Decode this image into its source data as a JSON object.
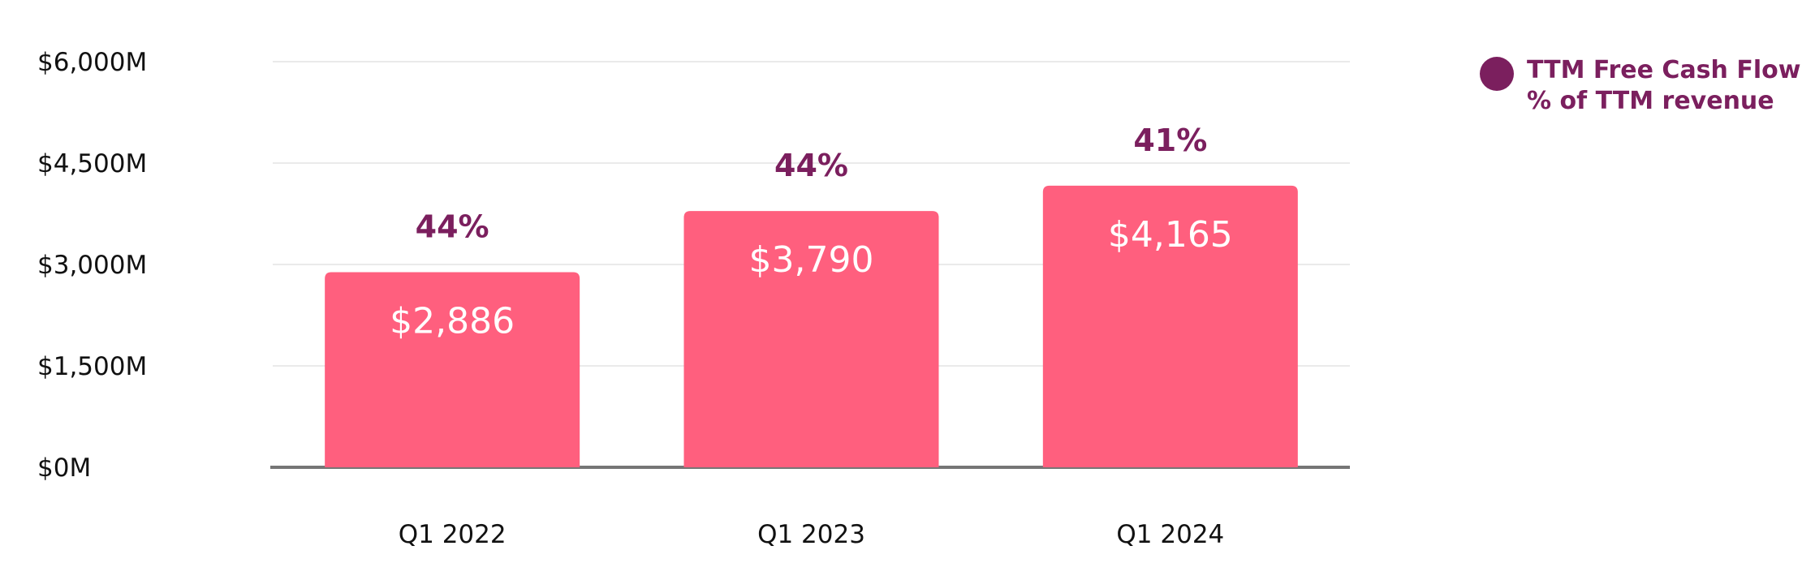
{
  "chart_data": {
    "type": "bar",
    "categories": [
      "Q1 2022",
      "Q1 2023",
      "Q1 2024"
    ],
    "series": [
      {
        "name": "TTM Free Cash Flow",
        "values": [
          2886,
          3790,
          4165
        ],
        "value_labels": [
          "$2,886",
          "$3,790",
          "$4,165"
        ],
        "secondary_labels": [
          "44%",
          "44%",
          "41%"
        ],
        "secondary_name": "% of TTM revenue"
      }
    ],
    "y_ticks": [
      0,
      1500,
      3000,
      4500,
      6000
    ],
    "y_tick_labels": [
      "$0M",
      "$1,500M",
      "$3,000M",
      "$4,500M",
      "$6,000M"
    ],
    "ylim": [
      0,
      6000
    ],
    "grid": true,
    "legend_position": "top-right",
    "colors": {
      "bar": "#FF5F7E",
      "accent": "#7B1F5E",
      "axis": "#767676",
      "grid": "#E4E4E4",
      "text": "#111111"
    }
  },
  "legend": {
    "line1": "TTM Free Cash Flow",
    "line2": "% of TTM revenue"
  }
}
